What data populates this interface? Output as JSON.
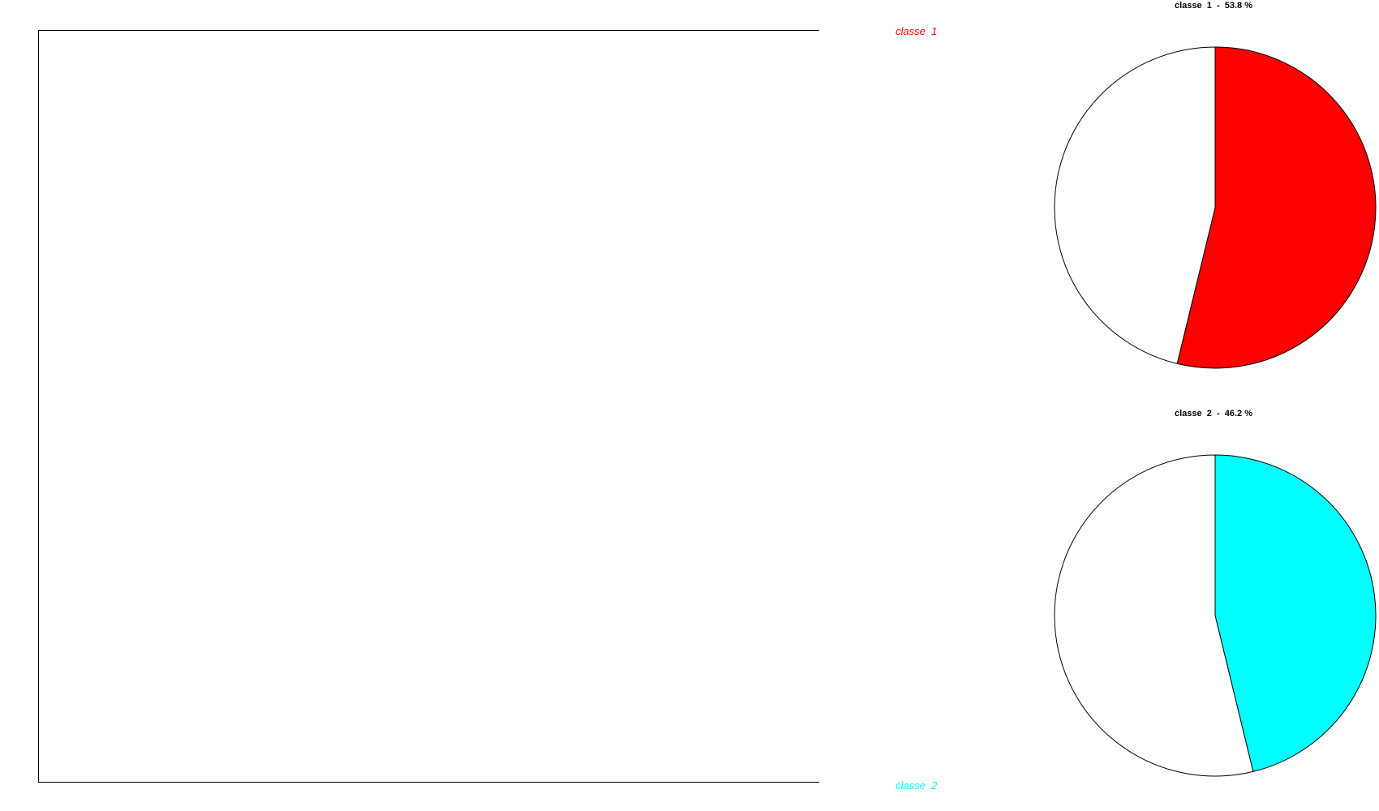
{
  "chart_data": [
    {
      "type": "scatter",
      "title": "",
      "xlabel": "",
      "ylabel": "",
      "legend": [
        {
          "label": "classe  1",
          "color": "#ff0000",
          "placement": "top"
        },
        {
          "label": "classe  2",
          "color": "#00ffff",
          "placement": "bottom"
        }
      ],
      "series": []
    },
    {
      "type": "pie",
      "title": "classe  1  -  53.8 %",
      "values": [
        53.8,
        46.2
      ],
      "colors": [
        "#ff0000",
        "#ffffff"
      ]
    },
    {
      "type": "pie",
      "title": "classe  2  -  46.2 %",
      "values": [
        46.2,
        53.8
      ],
      "colors": [
        "#00ffff",
        "#ffffff"
      ]
    }
  ]
}
